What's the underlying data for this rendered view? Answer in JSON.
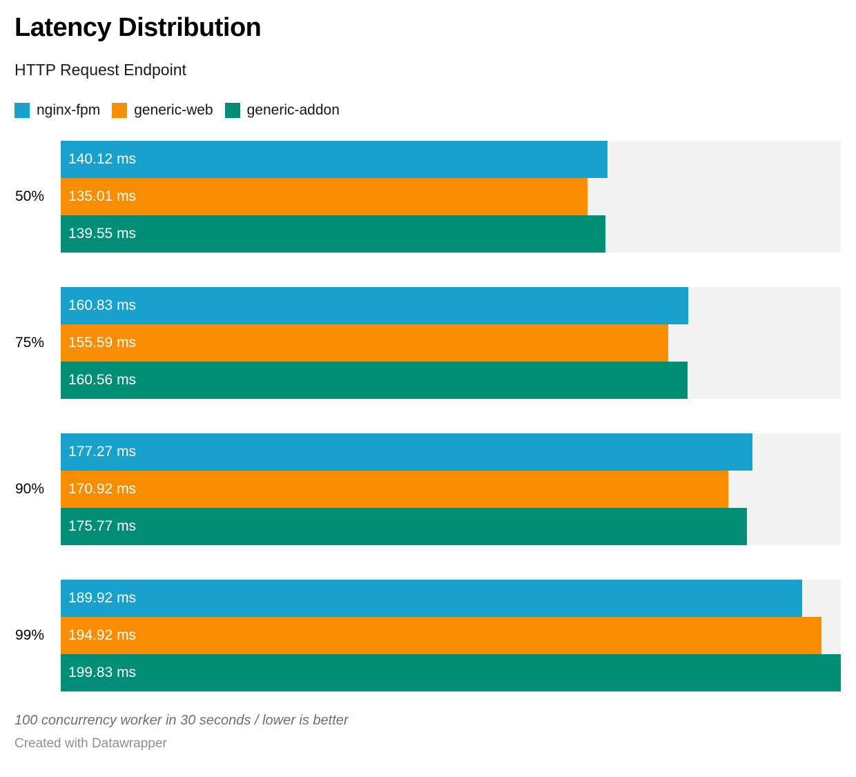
{
  "header": {
    "title": "Latency Distribution",
    "subtitle": "HTTP Request Endpoint"
  },
  "legend": {
    "items": [
      {
        "label": "nginx-fpm",
        "color": "#18a1cd"
      },
      {
        "label": "generic-web",
        "color": "#f88d01"
      },
      {
        "label": "generic-addon",
        "color": "#008f76"
      }
    ]
  },
  "chart_data": {
    "type": "bar",
    "orientation": "horizontal",
    "title": "Latency Distribution",
    "subtitle": "HTTP Request Endpoint",
    "categories": [
      "50%",
      "75%",
      "90%",
      "99%"
    ],
    "series": [
      {
        "name": "nginx-fpm",
        "color": "#18a1cd",
        "values": [
          140.12,
          160.83,
          177.27,
          189.92
        ],
        "labels": [
          "140.12 ms",
          "160.83 ms",
          "177.27 ms",
          "189.92 ms"
        ]
      },
      {
        "name": "generic-web",
        "color": "#f88d01",
        "values": [
          135.01,
          155.59,
          170.92,
          194.92
        ],
        "labels": [
          "135.01 ms",
          "155.59 ms",
          "170.92 ms",
          "194.92 ms"
        ]
      },
      {
        "name": "generic-addon",
        "color": "#008f76",
        "values": [
          139.55,
          160.56,
          175.77,
          199.83
        ],
        "labels": [
          "139.55 ms",
          "160.56 ms",
          "175.77 ms",
          "199.83 ms"
        ]
      }
    ],
    "unit": "ms",
    "xlim": [
      0,
      199.83
    ],
    "track_color": "#f2f2f2",
    "legend_position": "top",
    "grid": false
  },
  "footer": {
    "note": "100 concurrency worker in 30 seconds / lower is better",
    "attribution": "Created with Datawrapper"
  }
}
